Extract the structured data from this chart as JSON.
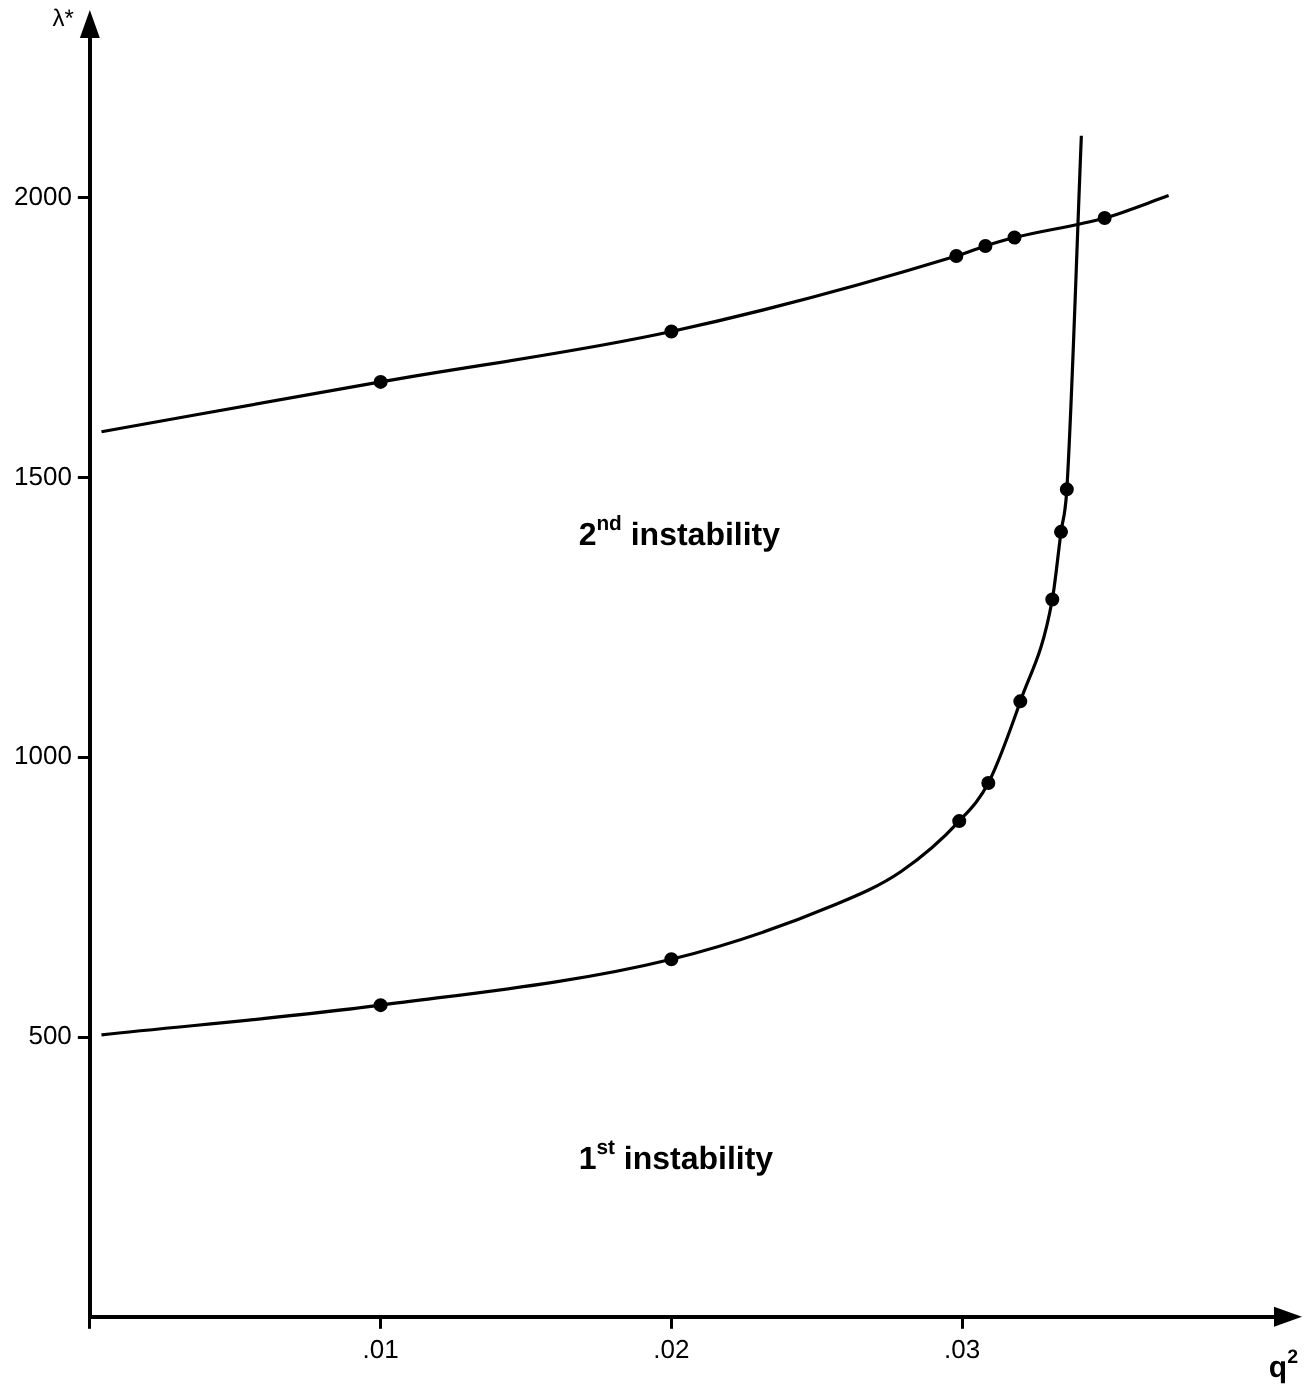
{
  "chart_data": {
    "type": "line",
    "xlabel": "q$^{2}$",
    "ylabel": "λ*",
    "xlim": [
      0,
      0.041
    ],
    "ylim": [
      0,
      2300
    ],
    "xticks": [
      {
        "value": 0,
        "label": null
      },
      {
        "value": 0.01,
        "label": ".01"
      },
      {
        "value": 0.02,
        "label": ".02"
      },
      {
        "value": 0.03,
        "label": ".03"
      }
    ],
    "yticks": [
      500,
      1000,
      1500,
      2000
    ],
    "grid": false,
    "legend": false,
    "series": [
      {
        "marker": "none",
        "color": "#000000",
        "x": [
          0.0004,
          0.01,
          0.02,
          0.0298,
          0.0308,
          0.0318,
          0.0349,
          0.0371
        ],
        "values": [
          1582,
          1671,
          1761,
          1896,
          1914,
          1929,
          1964,
          2004
        ]
      },
      {
        "type": "scatter",
        "marker": "circle",
        "color": "#000000",
        "x": [
          0.01,
          0.02,
          0.0298,
          0.0308,
          0.0318,
          0.0349
        ],
        "values": [
          1671,
          1761,
          1896,
          1914,
          1929,
          1964
        ]
      },
      {
        "marker": "none",
        "color": "#000000",
        "x": [
          0.0004,
          0.01,
          0.02,
          0.0256,
          0.0279,
          0.0299,
          0.0309,
          0.032,
          0.0331,
          0.0334,
          0.0336,
          0.0341
        ],
        "values": [
          504,
          557,
          639,
          736,
          796,
          886,
          954,
          1100,
          1282,
          1403,
          1479,
          2111
        ]
      },
      {
        "type": "scatter",
        "marker": "circle",
        "color": "#000000",
        "x": [
          0.01,
          0.02,
          0.0299,
          0.0309,
          0.032,
          0.0331,
          0.0334,
          0.0336
        ],
        "values": [
          557,
          639,
          886,
          954,
          1100,
          1282,
          1403,
          1479
        ]
      }
    ],
    "annotations": [
      "2$^{nd}$ instability",
      "1$^{st}$ instability"
    ]
  }
}
